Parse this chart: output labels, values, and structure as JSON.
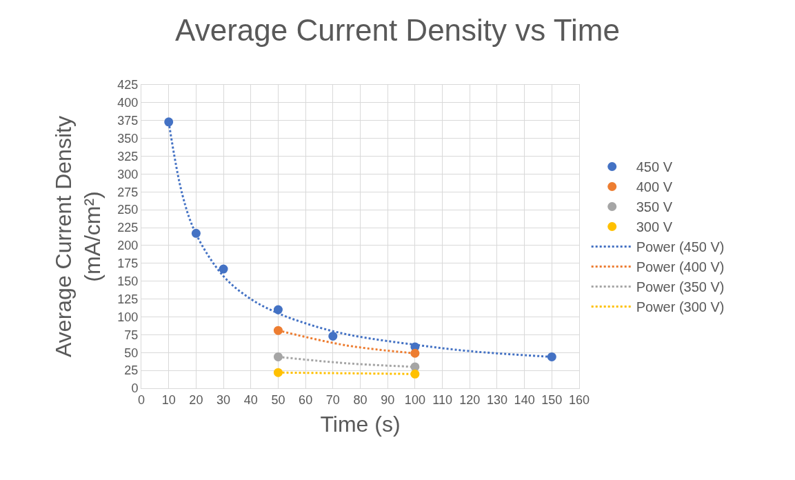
{
  "chart_data": {
    "type": "scatter",
    "title": "Average Current Density vs Time",
    "xlabel": "Time (s)",
    "ylabel": "Average Current Density\n(mA/cm²)",
    "xlim": [
      0,
      160
    ],
    "xticks": [
      0,
      10,
      20,
      30,
      40,
      50,
      60,
      70,
      80,
      90,
      100,
      110,
      120,
      130,
      140,
      150,
      160
    ],
    "ylim": [
      0,
      425
    ],
    "yticks": [
      0,
      25,
      50,
      75,
      100,
      125,
      150,
      175,
      200,
      225,
      250,
      275,
      300,
      325,
      350,
      375,
      400,
      425
    ],
    "grid": true,
    "legend": "right",
    "marker": "circle",
    "series": [
      {
        "name": "450 V",
        "color": "#4472c4",
        "x": [
          10,
          20,
          30,
          50,
          70,
          100,
          150
        ],
        "values": [
          373,
          217,
          167,
          110,
          73,
          58,
          44
        ]
      },
      {
        "name": "400 V",
        "color": "#ed7d31",
        "x": [
          50,
          100
        ],
        "values": [
          81,
          49
        ]
      },
      {
        "name": "350 V",
        "color": "#a5a5a5",
        "x": [
          50,
          100
        ],
        "values": [
          44,
          30
        ]
      },
      {
        "name": "300 V",
        "color": "#ffc000",
        "x": [
          50,
          100
        ],
        "values": [
          22,
          20
        ]
      },
      {
        "name": "Power (450 V)",
        "type": "line",
        "line_style": "dotted",
        "marker": "none",
        "color": "#4472c4",
        "x": [
          10,
          15,
          20,
          30,
          40,
          50,
          60,
          70,
          80,
          100,
          120,
          150
        ],
        "values": [
          373,
          271,
          216,
          157,
          125,
          105,
          91,
          80,
          72,
          61,
          52,
          44
        ]
      },
      {
        "name": "Power (400 V)",
        "type": "line",
        "line_style": "dotted",
        "marker": "none",
        "color": "#ed7d31",
        "x": [
          50,
          75,
          100
        ],
        "values": [
          81,
          60,
          49
        ]
      },
      {
        "name": "Power (350 V)",
        "type": "line",
        "line_style": "dotted",
        "marker": "none",
        "color": "#a5a5a5",
        "x": [
          50,
          75,
          100
        ],
        "values": [
          44,
          35,
          30
        ]
      },
      {
        "name": "Power (300 V)",
        "type": "line",
        "line_style": "dotted",
        "marker": "none",
        "color": "#ffc000",
        "x": [
          50,
          75,
          100
        ],
        "values": [
          22,
          21,
          20
        ]
      }
    ]
  }
}
